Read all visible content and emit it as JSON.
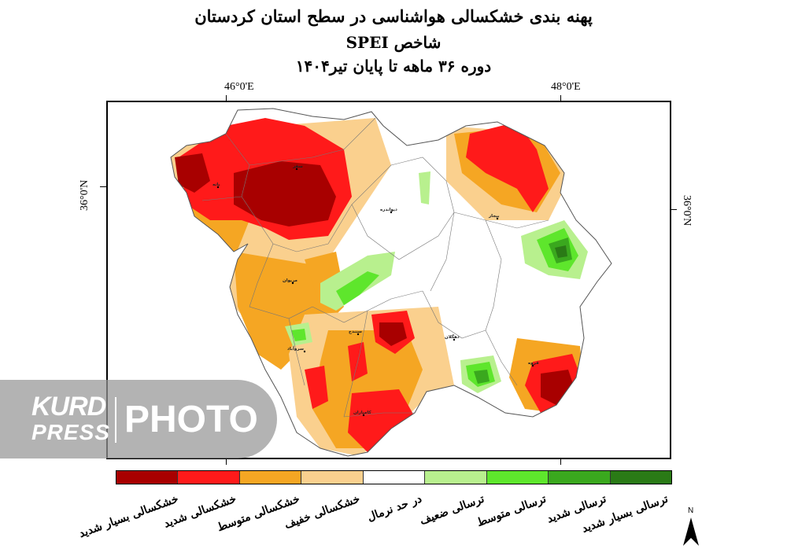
{
  "title": {
    "line1": "پهنه بندی خشکسالی هواشناسی در سطح استان کردستان",
    "line2": "شاخص SPEI",
    "line3": "دوره ۳۶ ماهه تا پایان تیر۱۴۰۴"
  },
  "coordinates": {
    "top_left": "46°0'E",
    "top_right": "48°0'E",
    "left": "36°0'N",
    "right": "36°0'N"
  },
  "cities": [
    "سقز",
    "بانه",
    "دیواندره",
    "بیجار",
    "مریوان",
    "سنندج",
    "سروآباد",
    "دهگلان",
    "قروه",
    "کامیاران"
  ],
  "legend": [
    {
      "label": "خشکسالی بسیار شدید",
      "color": "#a80000"
    },
    {
      "label": "خشکسالی شدید",
      "color": "#ff1a1a"
    },
    {
      "label": "خشکسالی متوسط",
      "color": "#f5a623"
    },
    {
      "label": "خشکسالی خفیف",
      "color": "#fad08e"
    },
    {
      "label": "در حد نرمال",
      "color": "#ffffff"
    },
    {
      "label": "ترسالی ضعیف",
      "color": "#b8f08e"
    },
    {
      "label": "ترسالی متوسط",
      "color": "#5ee62c"
    },
    {
      "label": "ترسالی شدید",
      "color": "#3aa81e"
    },
    {
      "label": "ترسالی بسیار شدید",
      "color": "#2a7a16"
    }
  ],
  "north_arrow": "N",
  "watermark": {
    "brand_top": "KURD",
    "brand_bottom": "PRESS",
    "right": "PHOTO"
  }
}
